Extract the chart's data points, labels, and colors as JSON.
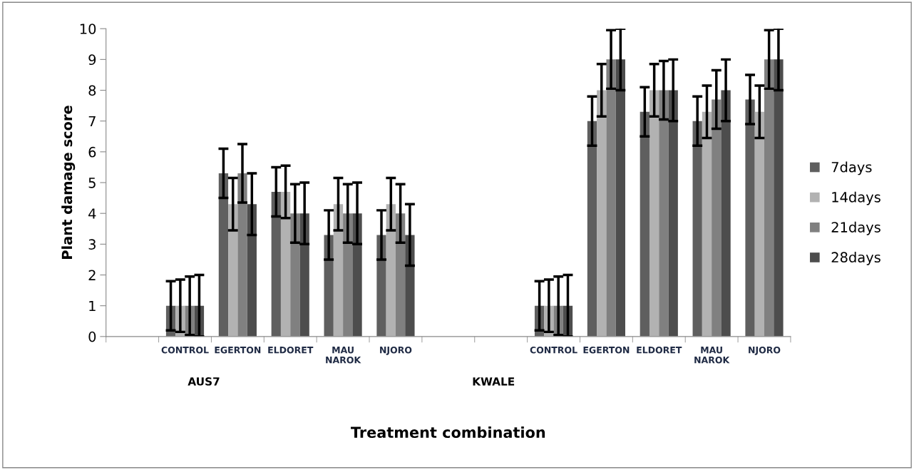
{
  "chart_data": {
    "type": "bar",
    "xlabel": "Treatment combination",
    "ylabel": "Plant damage score",
    "categories": [
      null,
      "CONTROL",
      "EGERTON",
      "ELDORET",
      "MAU\nNAROK",
      "NJORO",
      null,
      null,
      "CONTROL",
      "EGERTON",
      "ELDORET",
      "MAU\nNAROK",
      "NJORO"
    ],
    "series": [
      {
        "name": "7days",
        "color": "#5f5f5f",
        "values": [
          null,
          1,
          5.3,
          4.7,
          3.3,
          3.3,
          null,
          null,
          1,
          7,
          7.3,
          7,
          7.7
        ],
        "errors": [
          null,
          0.8,
          0.8,
          0.8,
          0.8,
          0.8,
          null,
          null,
          0.8,
          0.8,
          0.8,
          0.8,
          0.8
        ]
      },
      {
        "name": "14days",
        "color": "#b2b2b2",
        "values": [
          null,
          1,
          4.3,
          4.7,
          4.3,
          4.3,
          null,
          null,
          1,
          8,
          8,
          7.3,
          7.3
        ],
        "errors": [
          null,
          0.85,
          0.85,
          0.85,
          0.85,
          0.85,
          null,
          null,
          0.85,
          0.85,
          0.85,
          0.85,
          0.85
        ]
      },
      {
        "name": "21days",
        "color": "#808080",
        "values": [
          null,
          1,
          5.3,
          4,
          4,
          4,
          null,
          null,
          1,
          9,
          8,
          7.7,
          9
        ],
        "errors": [
          null,
          0.95,
          0.95,
          0.95,
          0.95,
          0.95,
          null,
          null,
          0.95,
          0.95,
          0.95,
          0.95,
          0.95
        ]
      },
      {
        "name": "28days",
        "color": "#4d4d4d",
        "values": [
          null,
          1,
          4.3,
          4,
          4,
          3.3,
          null,
          null,
          1,
          9,
          8,
          8,
          9
        ],
        "errors": [
          null,
          1,
          1,
          1,
          1,
          1,
          null,
          null,
          1,
          1,
          1,
          1,
          1
        ]
      }
    ],
    "ylim": [
      0,
      10
    ],
    "yticks": [
      0,
      1,
      2,
      3,
      4,
      5,
      6,
      7,
      8,
      9,
      10
    ],
    "grid": false,
    "legend": "right",
    "annotations": [
      "AUS7",
      "KWALE"
    ]
  }
}
